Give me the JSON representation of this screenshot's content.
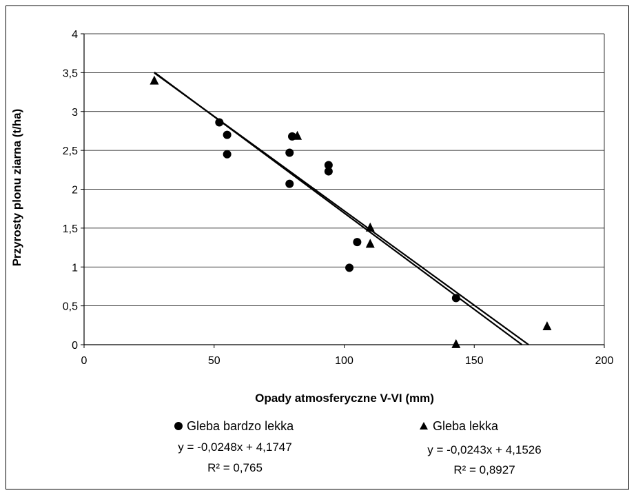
{
  "chart_data": {
    "type": "scatter",
    "xlabel": "Opady atmosferyczne V-VI (mm)",
    "ylabel": "Przyrosty plonu ziarna (t/ha)",
    "xlim": [
      0,
      200
    ],
    "ylim": [
      0,
      4
    ],
    "x_ticks": [
      "0",
      "50",
      "100",
      "150",
      "200"
    ],
    "y_ticks": [
      "0",
      "0,5",
      "1",
      "1,5",
      "2",
      "2,5",
      "3",
      "3,5",
      "4"
    ],
    "grid": "horizontal",
    "series": [
      {
        "name": "Gleba bardzo lekka",
        "marker": "circle",
        "color": "#000000",
        "points": [
          {
            "x": 52,
            "y": 2.86
          },
          {
            "x": 55,
            "y": 2.7
          },
          {
            "x": 55,
            "y": 2.45
          },
          {
            "x": 79,
            "y": 2.47
          },
          {
            "x": 79,
            "y": 2.07
          },
          {
            "x": 80,
            "y": 2.68
          },
          {
            "x": 94,
            "y": 2.31
          },
          {
            "x": 94,
            "y": 2.23
          },
          {
            "x": 102,
            "y": 0.99
          },
          {
            "x": 105,
            "y": 1.32
          },
          {
            "x": 143,
            "y": 0.6
          }
        ],
        "trendline": {
          "slope": -0.0248,
          "intercept": 4.1747,
          "equation": "y = -0,0248x + 4,1747",
          "r2": "R² = 0,765"
        }
      },
      {
        "name": "Gleba lekka",
        "marker": "triangle",
        "color": "#000000",
        "points": [
          {
            "x": 27,
            "y": 3.4
          },
          {
            "x": 82,
            "y": 2.69
          },
          {
            "x": 110,
            "y": 1.51
          },
          {
            "x": 110,
            "y": 1.3
          },
          {
            "x": 143,
            "y": 0.01
          },
          {
            "x": 178,
            "y": 0.24
          }
        ],
        "trendline": {
          "slope": -0.0243,
          "intercept": 4.1526,
          "equation": "y = -0,0243x + 4,1526",
          "r2": "R² = 0,8927"
        }
      }
    ]
  }
}
